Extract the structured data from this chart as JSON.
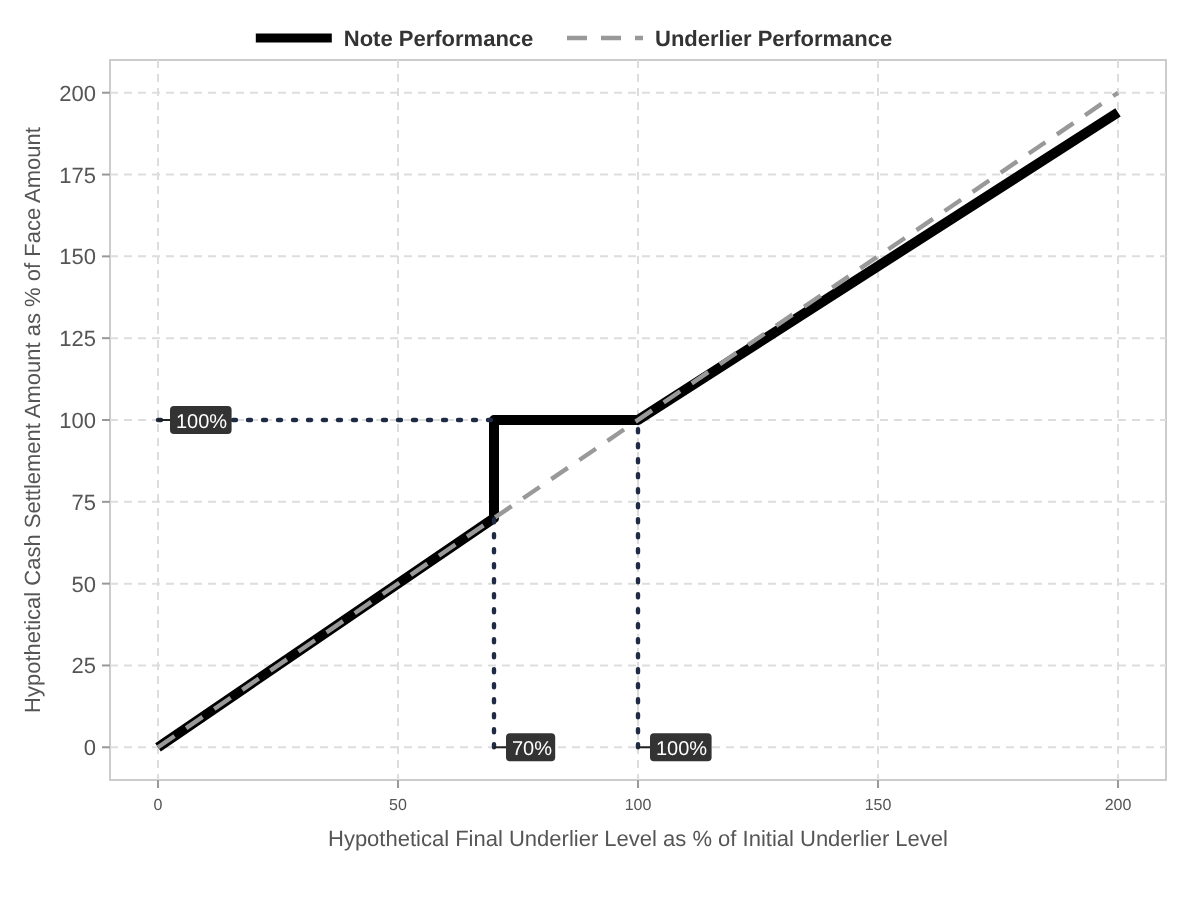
{
  "chart_data": {
    "type": "line",
    "xlabel": "Hypothetical Final Underlier Level as % of Initial Underlier Level",
    "ylabel": "Hypothetical Cash Settlement Amount as % of Face Amount",
    "xlim": [
      -10,
      210
    ],
    "xticks": [
      0,
      50,
      100,
      150,
      200
    ],
    "ylim": [
      -10,
      210
    ],
    "yticks": [
      0,
      25,
      50,
      75,
      100,
      125,
      150,
      175,
      200
    ],
    "grid": true,
    "legend": "top",
    "marker": "none",
    "series": [
      {
        "name": "Note Performance",
        "color": "#000000",
        "line_style": "solid",
        "x": [
          0,
          70,
          70,
          100,
          200
        ],
        "values": [
          0,
          70,
          100,
          100,
          194
        ]
      },
      {
        "name": "Underlier Performance",
        "color": "#999999",
        "line_style": "dashed",
        "x": [
          0,
          200
        ],
        "values": [
          0,
          200
        ]
      },
      {
        "color": "#1f2a44",
        "line_style": "dotted",
        "x": [
          0,
          70
        ],
        "values": [
          100,
          100
        ]
      },
      {
        "color": "#1f2a44",
        "line_style": "dotted",
        "x": [
          70,
          70
        ],
        "values": [
          0,
          70
        ]
      },
      {
        "color": "#1f2a44",
        "line_style": "dotted",
        "x": [
          100,
          100
        ],
        "values": [
          0,
          100
        ]
      }
    ],
    "annotations": [
      {
        "text": "100%",
        "x": 0,
        "y": 100
      },
      {
        "text": "70%",
        "x": 70,
        "y": 0
      },
      {
        "text": "100%",
        "x": 100,
        "y": 0
      }
    ]
  }
}
